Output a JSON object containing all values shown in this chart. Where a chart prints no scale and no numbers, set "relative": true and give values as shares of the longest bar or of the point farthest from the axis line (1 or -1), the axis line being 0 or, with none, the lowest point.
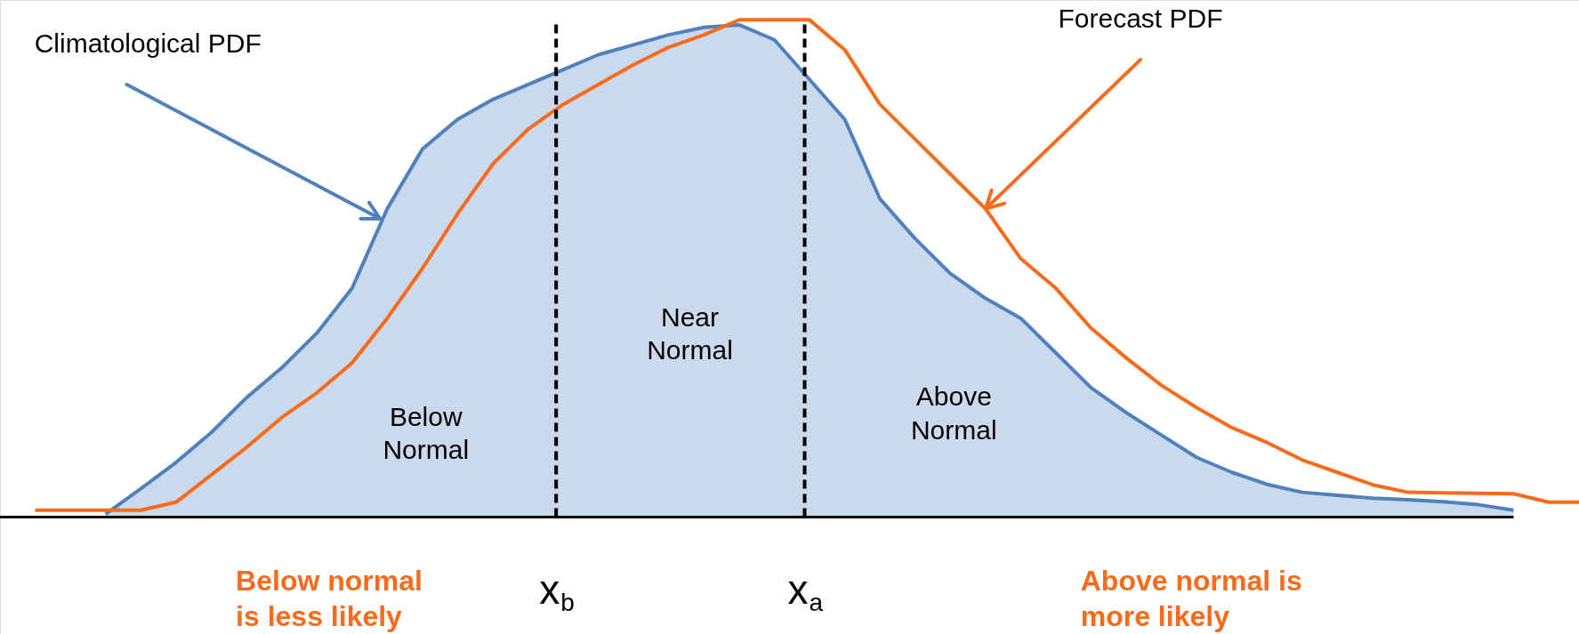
{
  "chart_data": {
    "type": "line",
    "relative": true,
    "categories": [
      null,
      null,
      null,
      null,
      null,
      null,
      null,
      null,
      null,
      null,
      null,
      null,
      null,
      null,
      null,
      null,
      null,
      null,
      null,
      null,
      null,
      null,
      null,
      null,
      null,
      null,
      null,
      null,
      null,
      null,
      null,
      null,
      null,
      null,
      null,
      null,
      null,
      null,
      null,
      null,
      null,
      null,
      null,
      null,
      null
    ],
    "series": [
      {
        "type": "area",
        "color": "#4f81bd",
        "values": [
          null,
          null,
          0.006,
          0.057,
          0.11,
          0.17,
          0.24,
          0.3,
          0.37,
          0.46,
          0.62,
          0.74,
          0.8,
          0.84,
          0.87,
          0.9,
          0.93,
          0.95,
          0.97,
          0.985,
          0.99,
          0.96,
          0.88,
          0.8,
          0.64,
          0.56,
          0.49,
          0.44,
          0.4,
          0.33,
          0.26,
          0.21,
          0.165,
          0.12,
          0.09,
          0.066,
          0.05,
          0.044,
          0.038,
          0.035,
          0.031,
          0.025,
          0.014,
          null,
          null
        ]
      },
      {
        "color": "#f96b1a",
        "values": [
          0.014,
          0.014,
          0.014,
          0.014,
          0.03,
          0.085,
          0.14,
          0.2,
          0.25,
          0.31,
          0.4,
          0.5,
          0.61,
          0.71,
          0.78,
          0.83,
          0.87,
          0.91,
          0.945,
          0.97,
          1.0,
          1.0,
          1.0,
          0.94,
          0.83,
          0.76,
          0.69,
          0.62,
          0.52,
          0.46,
          0.38,
          0.32,
          0.265,
          0.22,
          0.18,
          0.15,
          0.115,
          0.09,
          0.065,
          0.05,
          0.049,
          0.048,
          0.047,
          0.03,
          0.03
        ]
      }
    ],
    "ref_lines": [
      {
        "axis": "x",
        "label": "x$_{b}$",
        "color": "#000000",
        "line_style": "dashed"
      },
      {
        "axis": "x",
        "label": "x$_{a}$",
        "color": "#000000",
        "line_style": "dashed"
      }
    ],
    "annotations": [
      "Climatological PDF",
      "Forecast PDF",
      "Near\nNormal",
      "Below\nNormal",
      "Above\nNormal",
      "Below normal\nis less likely",
      "Above normal is\nmore likely"
    ]
  }
}
